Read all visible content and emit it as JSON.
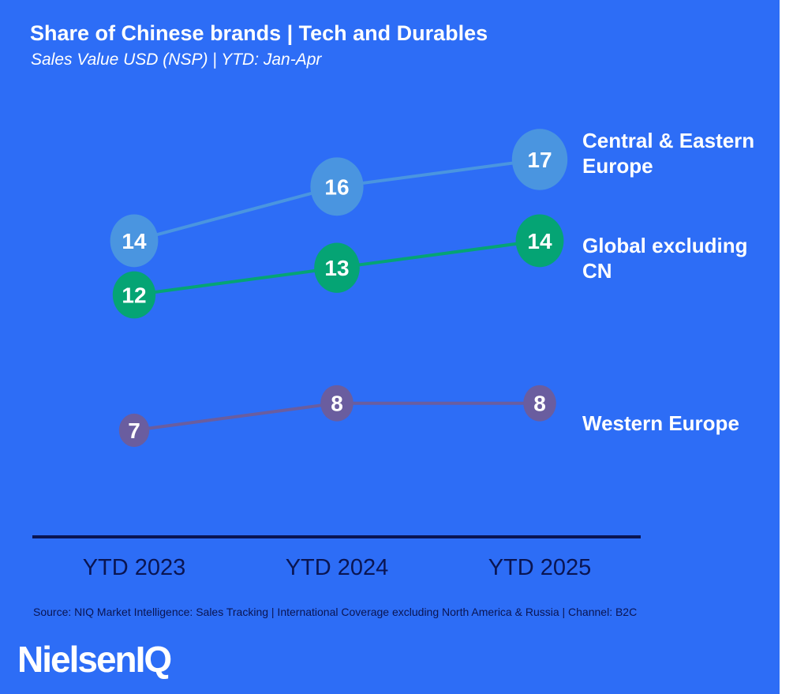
{
  "chart_data": {
    "type": "line",
    "title": "Share of Chinese brands | Tech and Durables",
    "subtitle": "Sales Value USD (NSP) | YTD: Jan-Apr",
    "categories": [
      "YTD 2023",
      "YTD 2024",
      "YTD 2025"
    ],
    "series": [
      {
        "name": "Central & Eastern Europe",
        "values": [
          14,
          16,
          17
        ],
        "color": "#4A95E0"
      },
      {
        "name": "Global excluding CN",
        "values": [
          12,
          13,
          14
        ],
        "color": "#05A474"
      },
      {
        "name": "Western Europe",
        "values": [
          7,
          8,
          8
        ],
        "color": "#6A5D9F"
      }
    ],
    "ylim": [
      7,
      17
    ],
    "grid": false,
    "legend": "right, inline labels",
    "axis_color": "#0A1552"
  },
  "source": "Source: NIQ Market Intelligence: Sales Tracking | International Coverage excluding North America & Russia | Channel: B2C",
  "logo": "NielsenIQ",
  "background_color": "#2D6DF6"
}
